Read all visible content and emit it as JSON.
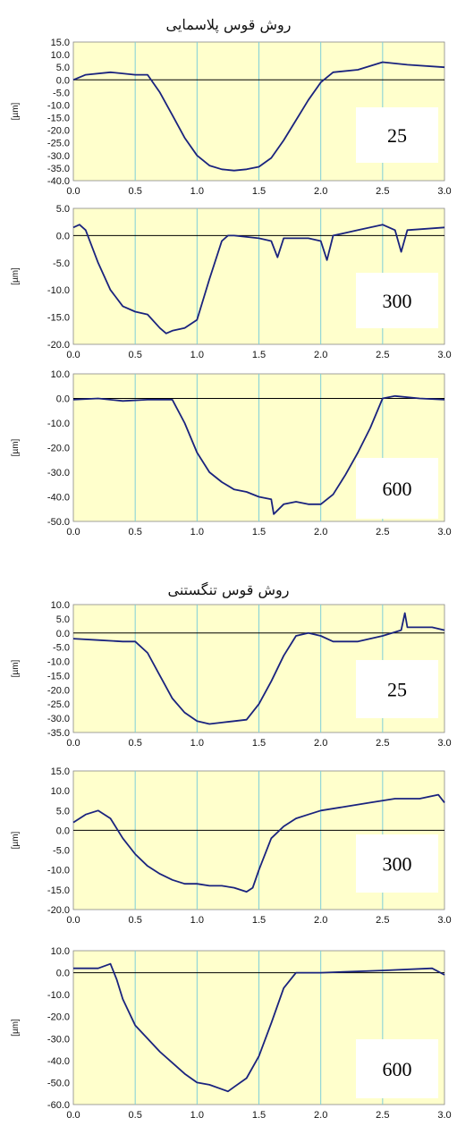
{
  "sections": [
    {
      "title": "روش قوس پلاسمایی"
    },
    {
      "title": "روش قوس تنگستنی"
    }
  ],
  "colors": {
    "plot_bg": "#ffffcc",
    "grid": "#7fcfd8",
    "line": "#1a237e",
    "zero": "#000000"
  },
  "chart_data": [
    {
      "type": "line",
      "label": "25",
      "ylabel": "[µm]",
      "xlim": [
        0,
        3
      ],
      "ylim": [
        -40,
        15
      ],
      "xticks": [
        "0.0",
        "0.5",
        "1.0",
        "1.5",
        "2.0",
        "2.5",
        "3.0"
      ],
      "yticks": [
        "15.0",
        "10.0",
        "5.0",
        "0.0",
        "-5.0",
        "-10.0",
        "-15.0",
        "-20.0",
        "-25.0",
        "-30.0",
        "-35.0",
        "-40.0"
      ],
      "series": [
        {
          "x": [
            0,
            0.1,
            0.3,
            0.5,
            0.6,
            0.7,
            0.8,
            0.9,
            1.0,
            1.1,
            1.2,
            1.3,
            1.4,
            1.5,
            1.6,
            1.7,
            1.8,
            1.9,
            2.0,
            2.1,
            2.3,
            2.5,
            2.7,
            3.0
          ],
          "y": [
            0,
            2,
            3,
            2,
            2,
            -5,
            -14,
            -23,
            -30,
            -34,
            -35.5,
            -36,
            -35.5,
            -34.5,
            -31,
            -24,
            -16,
            -8,
            -1,
            3,
            4,
            7,
            6,
            5
          ]
        }
      ]
    },
    {
      "type": "line",
      "label": "300",
      "ylabel": "[µm]",
      "xlim": [
        0,
        3
      ],
      "ylim": [
        -20,
        5
      ],
      "xticks": [
        "0.0",
        "0.5",
        "1.0",
        "1.5",
        "2.0",
        "2.5",
        "3.0"
      ],
      "yticks": [
        "5.0",
        "0.0",
        "-5.0",
        "-10.0",
        "-15.0",
        "-20.0"
      ],
      "series": [
        {
          "x": [
            0,
            0.05,
            0.1,
            0.2,
            0.3,
            0.4,
            0.5,
            0.6,
            0.7,
            0.75,
            0.8,
            0.9,
            1.0,
            1.1,
            1.2,
            1.25,
            1.3,
            1.5,
            1.6,
            1.65,
            1.7,
            1.9,
            2.0,
            2.05,
            2.1,
            2.3,
            2.5,
            2.6,
            2.65,
            2.7,
            3.0
          ],
          "y": [
            1.5,
            2,
            1,
            -5,
            -10,
            -13,
            -14,
            -14.5,
            -17,
            -18,
            -17.5,
            -17,
            -15.5,
            -8,
            -1,
            0,
            0,
            -0.5,
            -1,
            -4,
            -0.5,
            -0.5,
            -1,
            -4.5,
            0,
            1,
            2,
            1,
            -3,
            1,
            1.5
          ]
        }
      ]
    },
    {
      "type": "line",
      "label": "600",
      "ylabel": "[µm]",
      "xlim": [
        0,
        3
      ],
      "ylim": [
        -50,
        10
      ],
      "xticks": [
        "0.0",
        "0.5",
        "1.0",
        "1.5",
        "2.0",
        "2.5",
        "3.0"
      ],
      "yticks": [
        "10.0",
        "0.0",
        "-10.0",
        "-20.0",
        "-30.0",
        "-40.0",
        "-50.0"
      ],
      "series": [
        {
          "x": [
            0,
            0.2,
            0.4,
            0.6,
            0.8,
            0.9,
            1.0,
            1.1,
            1.2,
            1.3,
            1.4,
            1.5,
            1.6,
            1.62,
            1.7,
            1.8,
            1.9,
            2.0,
            2.1,
            2.2,
            2.3,
            2.4,
            2.5,
            2.6,
            2.8,
            3.0
          ],
          "y": [
            -0.5,
            0,
            -1,
            -0.5,
            -0.5,
            -10,
            -22,
            -30,
            -34,
            -37,
            -38,
            -40,
            -41,
            -47,
            -43,
            -42,
            -43,
            -43,
            -39,
            -31,
            -22,
            -12,
            0,
            1,
            0,
            -0.5
          ]
        }
      ]
    },
    {
      "type": "line",
      "label": "25",
      "ylabel": "[µm]",
      "xlim": [
        0,
        3
      ],
      "ylim": [
        -35,
        10
      ],
      "xticks": [
        "0.0",
        "0.5",
        "1.0",
        "1.5",
        "2.0",
        "2.5",
        "3.0"
      ],
      "yticks": [
        "10.0",
        "5.0",
        "0.0",
        "-5.0",
        "-10.0",
        "-15.0",
        "-20.0",
        "-25.0",
        "-30.0",
        "-35.0"
      ],
      "series": [
        {
          "x": [
            0,
            0.2,
            0.4,
            0.5,
            0.6,
            0.7,
            0.8,
            0.9,
            1.0,
            1.1,
            1.2,
            1.3,
            1.4,
            1.5,
            1.6,
            1.7,
            1.8,
            1.9,
            2.0,
            2.1,
            2.3,
            2.5,
            2.65,
            2.68,
            2.7,
            2.9,
            3.0
          ],
          "y": [
            -2,
            -2.5,
            -3,
            -3,
            -7,
            -15,
            -23,
            -28,
            -31,
            -32,
            -31.5,
            -31,
            -30.5,
            -25,
            -17,
            -8,
            -1,
            0,
            -1,
            -3,
            -3,
            -1,
            1,
            7,
            2,
            2,
            1
          ]
        }
      ]
    },
    {
      "type": "line",
      "label": "300",
      "ylabel": "[µm]",
      "xlim": [
        0,
        3
      ],
      "ylim": [
        -20,
        15
      ],
      "xticks": [
        "0.0",
        "0.5",
        "1.0",
        "1.5",
        "2.0",
        "2.5",
        "3.0"
      ],
      "yticks": [
        "15.0",
        "10.0",
        "5.0",
        "0.0",
        "-5.0",
        "-10.0",
        "-15.0",
        "-20.0"
      ],
      "series": [
        {
          "x": [
            0,
            0.1,
            0.2,
            0.3,
            0.4,
            0.5,
            0.6,
            0.7,
            0.8,
            0.9,
            1.0,
            1.1,
            1.2,
            1.3,
            1.4,
            1.45,
            1.5,
            1.6,
            1.7,
            1.8,
            1.9,
            2.0,
            2.2,
            2.4,
            2.6,
            2.8,
            2.95,
            3.0
          ],
          "y": [
            2,
            4,
            5,
            3,
            -2,
            -6,
            -9,
            -11,
            -12.5,
            -13.5,
            -13.5,
            -14,
            -14,
            -14.5,
            -15.5,
            -14.5,
            -10,
            -2,
            1,
            3,
            4,
            5,
            6,
            7,
            8,
            8,
            9,
            7
          ]
        }
      ]
    },
    {
      "type": "line",
      "label": "600",
      "ylabel": "[µm]",
      "xlim": [
        0,
        3
      ],
      "ylim": [
        -60,
        10
      ],
      "xticks": [
        "0.0",
        "0.5",
        "1.0",
        "1.5",
        "2.0",
        "2.5",
        "3.0"
      ],
      "yticks": [
        "10.0",
        "0.0",
        "-10.0",
        "-20.0",
        "-30.0",
        "-40.0",
        "-50.0",
        "-60.0"
      ],
      "series": [
        {
          "x": [
            0,
            0.2,
            0.3,
            0.35,
            0.4,
            0.5,
            0.6,
            0.7,
            0.8,
            0.9,
            1.0,
            1.1,
            1.2,
            1.25,
            1.3,
            1.4,
            1.5,
            1.6,
            1.7,
            1.8,
            2.0,
            2.5,
            2.9,
            3.0
          ],
          "y": [
            2,
            2,
            4,
            -3,
            -12,
            -24,
            -30,
            -36,
            -41,
            -46,
            -50,
            -51,
            -53,
            -54,
            -52,
            -48,
            -38,
            -23,
            -7,
            0,
            0,
            1,
            2,
            -1
          ]
        }
      ]
    }
  ]
}
